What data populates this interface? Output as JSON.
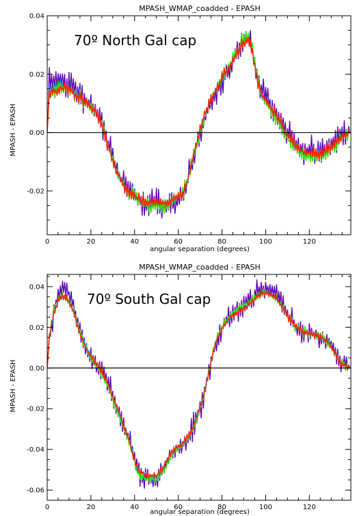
{
  "chart_data": [
    {
      "type": "line",
      "title": "MPASH_WMAP_coadded  -  EPASH",
      "xlabel": "angular separation (degrees)",
      "ylabel": "MPASH  -  EPASH",
      "annotation": "70º North Gal cap",
      "xlim": [
        0,
        139
      ],
      "ylim": [
        -0.035,
        0.04
      ],
      "xticks": [
        0,
        20,
        40,
        60,
        80,
        100,
        120
      ],
      "xtick_labels": [
        "0",
        "20",
        "40",
        "60",
        "80",
        "100",
        "120"
      ],
      "yticks": [
        -0.02,
        0.0,
        0.02,
        0.04
      ],
      "ytick_labels": [
        "-0.02",
        "0.00",
        "0.02",
        "0.04"
      ],
      "zero_line": true,
      "grid": false,
      "series": [
        {
          "color": "#5a00b4",
          "jitter": 0.004,
          "seed": 11,
          "x": [
            0,
            1,
            3,
            6,
            10,
            14,
            18,
            22,
            25,
            27,
            29,
            31,
            34,
            38,
            42,
            46,
            50,
            54,
            58,
            62,
            64,
            66,
            68,
            70,
            72,
            75,
            78,
            82,
            86,
            89,
            92,
            94,
            96,
            98,
            101,
            104,
            107,
            110,
            113,
            116,
            119,
            122,
            125,
            128,
            131,
            134,
            136,
            139
          ],
          "y": [
            0,
            0.018,
            0.017,
            0.018,
            0.017,
            0.014,
            0.011,
            0.008,
            0.004,
            -0.001,
            -0.006,
            -0.011,
            -0.016,
            -0.02,
            -0.023,
            -0.024,
            -0.024,
            -0.025,
            -0.024,
            -0.022,
            -0.018,
            -0.012,
            -0.006,
            0,
            0.005,
            0.01,
            0.015,
            0.02,
            0.026,
            0.031,
            0.033,
            0.028,
            0.02,
            0.014,
            0.011,
            0.008,
            0.004,
            0,
            -0.003,
            -0.005,
            -0.006,
            -0.006,
            -0.007,
            -0.006,
            -0.003,
            0,
            0,
            0
          ]
        },
        {
          "color": "#00b4e6",
          "jitter": 0.0012,
          "seed": 23,
          "x": [
            0,
            1,
            3,
            6,
            10,
            14,
            18,
            22,
            25,
            27,
            29,
            31,
            34,
            38,
            42,
            46,
            50,
            54,
            58,
            62,
            64,
            66,
            68,
            70,
            72,
            75,
            78,
            82,
            86,
            89,
            92,
            94,
            96,
            98,
            101,
            104,
            107,
            110,
            113,
            116,
            119,
            122,
            125,
            128,
            131,
            134,
            136,
            139
          ],
          "y": [
            0,
            0.015,
            0.015,
            0.016,
            0.015,
            0.013,
            0.01,
            0.007,
            0.003,
            -0.002,
            -0.007,
            -0.012,
            -0.017,
            -0.021,
            -0.023,
            -0.024,
            -0.024,
            -0.024,
            -0.023,
            -0.021,
            -0.017,
            -0.011,
            -0.005,
            0.001,
            0.006,
            0.011,
            0.016,
            0.021,
            0.026,
            0.03,
            0.032,
            0.027,
            0.019,
            0.013,
            0.01,
            0.007,
            0.003,
            -0.001,
            -0.004,
            -0.006,
            -0.007,
            -0.007,
            -0.007,
            -0.006,
            -0.004,
            -0.002,
            -0.001,
            0
          ]
        },
        {
          "color": "#28e600",
          "jitter": 0.0022,
          "seed": 37,
          "x": [
            0,
            1,
            3,
            6,
            10,
            14,
            18,
            22,
            25,
            27,
            29,
            31,
            34,
            38,
            42,
            46,
            50,
            54,
            58,
            62,
            64,
            66,
            68,
            70,
            72,
            75,
            78,
            82,
            86,
            89,
            92,
            94,
            96,
            98,
            101,
            104,
            107,
            110,
            113,
            116,
            119,
            122,
            125,
            128,
            131,
            134,
            136,
            139
          ],
          "y": [
            0,
            0.013,
            0.014,
            0.015,
            0.015,
            0.012,
            0.01,
            0.007,
            0.003,
            -0.002,
            -0.007,
            -0.012,
            -0.017,
            -0.021,
            -0.023,
            -0.025,
            -0.025,
            -0.025,
            -0.023,
            -0.021,
            -0.017,
            -0.011,
            -0.005,
            0.001,
            0.006,
            0.011,
            0.016,
            0.021,
            0.026,
            0.031,
            0.033,
            0.028,
            0.02,
            0.013,
            0.009,
            0.006,
            0.002,
            -0.002,
            -0.005,
            -0.007,
            -0.008,
            -0.008,
            -0.008,
            -0.007,
            -0.005,
            -0.002,
            -0.001,
            0
          ]
        },
        {
          "color": "#ff2000",
          "jitter": 0.0018,
          "seed": 53,
          "x": [
            0,
            1,
            3,
            6,
            10,
            14,
            18,
            22,
            25,
            27,
            29,
            31,
            34,
            38,
            42,
            46,
            50,
            54,
            58,
            62,
            64,
            66,
            68,
            70,
            72,
            75,
            78,
            82,
            86,
            89,
            92,
            94,
            96,
            98,
            101,
            104,
            107,
            110,
            113,
            116,
            119,
            122,
            125,
            128,
            131,
            134,
            136,
            139
          ],
          "y": [
            0,
            0.014,
            0.014,
            0.015,
            0.015,
            0.012,
            0.01,
            0.007,
            0.003,
            -0.002,
            -0.007,
            -0.012,
            -0.017,
            -0.021,
            -0.023,
            -0.024,
            -0.024,
            -0.024,
            -0.023,
            -0.021,
            -0.017,
            -0.011,
            -0.005,
            0.001,
            0.006,
            0.011,
            0.016,
            0.021,
            0.026,
            0.03,
            0.032,
            0.027,
            0.019,
            0.013,
            0.01,
            0.007,
            0.003,
            -0.001,
            -0.004,
            -0.006,
            -0.007,
            -0.007,
            -0.007,
            -0.006,
            -0.004,
            -0.002,
            -0.001,
            0
          ]
        }
      ]
    },
    {
      "type": "line",
      "title": "MPASH_WMAP_coadded  -  EPASH",
      "xlabel": "angular separation (degrees)",
      "ylabel": "MPASH  -  EPASH",
      "annotation": "70º South Gal cap",
      "xlim": [
        0,
        139
      ],
      "ylim": [
        -0.065,
        0.046
      ],
      "xticks": [
        0,
        20,
        40,
        60,
        80,
        100,
        120
      ],
      "xtick_labels": [
        "0",
        "20",
        "40",
        "60",
        "80",
        "100",
        "120"
      ],
      "yticks": [
        -0.06,
        -0.04,
        -0.02,
        0.0,
        0.02,
        0.04
      ],
      "ytick_labels": [
        "-0.06",
        "-0.04",
        "-0.02",
        "0.00",
        "0.02",
        "0.04"
      ],
      "zero_line": true,
      "grid": false,
      "series": [
        {
          "color": "#5a00b4",
          "jitter": 0.005,
          "seed": 71,
          "x": [
            0,
            1,
            3,
            5,
            7,
            9,
            11,
            13,
            15,
            18,
            21,
            24,
            27,
            30,
            34,
            38,
            41,
            44,
            47,
            50,
            53,
            56,
            59,
            62,
            65,
            68,
            71,
            74,
            76,
            78,
            81,
            84,
            87,
            90,
            93,
            96,
            99,
            102,
            105,
            108,
            111,
            114,
            117,
            120,
            123,
            126,
            129,
            132,
            135,
            139
          ],
          "y": [
            0,
            0.015,
            0.028,
            0.036,
            0.039,
            0.038,
            0.034,
            0.026,
            0.018,
            0.009,
            0.003,
            0,
            -0.006,
            -0.014,
            -0.025,
            -0.037,
            -0.05,
            -0.054,
            -0.055,
            -0.055,
            -0.05,
            -0.044,
            -0.039,
            -0.038,
            -0.034,
            -0.026,
            -0.016,
            -0.002,
            0.008,
            0.015,
            0.021,
            0.026,
            0.028,
            0.03,
            0.033,
            0.037,
            0.039,
            0.039,
            0.036,
            0.03,
            0.024,
            0.02,
            0.018,
            0.017,
            0.016,
            0.015,
            0.013,
            0.008,
            0.002,
            0
          ]
        },
        {
          "color": "#00b4e6",
          "jitter": 0.0012,
          "seed": 83,
          "x": [
            0,
            1,
            3,
            5,
            7,
            9,
            11,
            13,
            15,
            18,
            21,
            24,
            27,
            30,
            34,
            38,
            41,
            44,
            47,
            50,
            53,
            56,
            59,
            62,
            65,
            68,
            71,
            74,
            76,
            78,
            81,
            84,
            87,
            90,
            93,
            96,
            99,
            102,
            105,
            108,
            111,
            114,
            117,
            120,
            123,
            126,
            129,
            132,
            135,
            139
          ],
          "y": [
            0,
            0.015,
            0.027,
            0.033,
            0.035,
            0.034,
            0.031,
            0.025,
            0.018,
            0.01,
            0.004,
            0,
            -0.006,
            -0.014,
            -0.025,
            -0.037,
            -0.049,
            -0.052,
            -0.053,
            -0.053,
            -0.049,
            -0.043,
            -0.039,
            -0.037,
            -0.033,
            -0.026,
            -0.016,
            -0.002,
            0.008,
            0.015,
            0.021,
            0.025,
            0.027,
            0.029,
            0.032,
            0.035,
            0.037,
            0.036,
            0.034,
            0.029,
            0.024,
            0.02,
            0.018,
            0.017,
            0.016,
            0.015,
            0.012,
            0.007,
            0.002,
            0
          ]
        },
        {
          "color": "#28e600",
          "jitter": 0.002,
          "seed": 97,
          "x": [
            0,
            1,
            3,
            5,
            7,
            9,
            11,
            13,
            15,
            18,
            21,
            24,
            27,
            30,
            34,
            38,
            41,
            44,
            47,
            50,
            53,
            56,
            59,
            62,
            65,
            68,
            71,
            74,
            76,
            78,
            81,
            84,
            87,
            90,
            93,
            96,
            99,
            102,
            105,
            108,
            111,
            114,
            117,
            120,
            123,
            126,
            129,
            132,
            135,
            139
          ],
          "y": [
            0,
            0.016,
            0.028,
            0.034,
            0.036,
            0.034,
            0.031,
            0.025,
            0.018,
            0.009,
            0.003,
            -0.001,
            -0.007,
            -0.015,
            -0.026,
            -0.038,
            -0.051,
            -0.054,
            -0.055,
            -0.055,
            -0.051,
            -0.045,
            -0.04,
            -0.038,
            -0.034,
            -0.027,
            -0.017,
            -0.003,
            0.008,
            0.016,
            0.022,
            0.026,
            0.029,
            0.031,
            0.033,
            0.035,
            0.037,
            0.036,
            0.034,
            0.029,
            0.024,
            0.02,
            0.018,
            0.017,
            0.016,
            0.015,
            0.012,
            0.007,
            0.002,
            0
          ]
        },
        {
          "color": "#ff2000",
          "jitter": 0.0016,
          "seed": 109,
          "x": [
            0,
            1,
            3,
            5,
            7,
            9,
            11,
            13,
            15,
            18,
            21,
            24,
            27,
            30,
            34,
            38,
            41,
            44,
            47,
            50,
            53,
            56,
            59,
            62,
            65,
            68,
            71,
            74,
            76,
            78,
            81,
            84,
            87,
            90,
            93,
            96,
            99,
            102,
            105,
            108,
            111,
            114,
            117,
            120,
            123,
            126,
            129,
            132,
            135,
            139
          ],
          "y": [
            0,
            0.015,
            0.027,
            0.033,
            0.035,
            0.034,
            0.03,
            0.024,
            0.017,
            0.009,
            0.004,
            0,
            -0.006,
            -0.014,
            -0.025,
            -0.037,
            -0.049,
            -0.052,
            -0.053,
            -0.053,
            -0.049,
            -0.043,
            -0.039,
            -0.037,
            -0.033,
            -0.026,
            -0.016,
            -0.002,
            0.008,
            0.015,
            0.021,
            0.025,
            0.027,
            0.029,
            0.032,
            0.035,
            0.037,
            0.036,
            0.034,
            0.029,
            0.024,
            0.02,
            0.018,
            0.017,
            0.016,
            0.015,
            0.012,
            0.007,
            0.002,
            0
          ]
        }
      ]
    }
  ]
}
